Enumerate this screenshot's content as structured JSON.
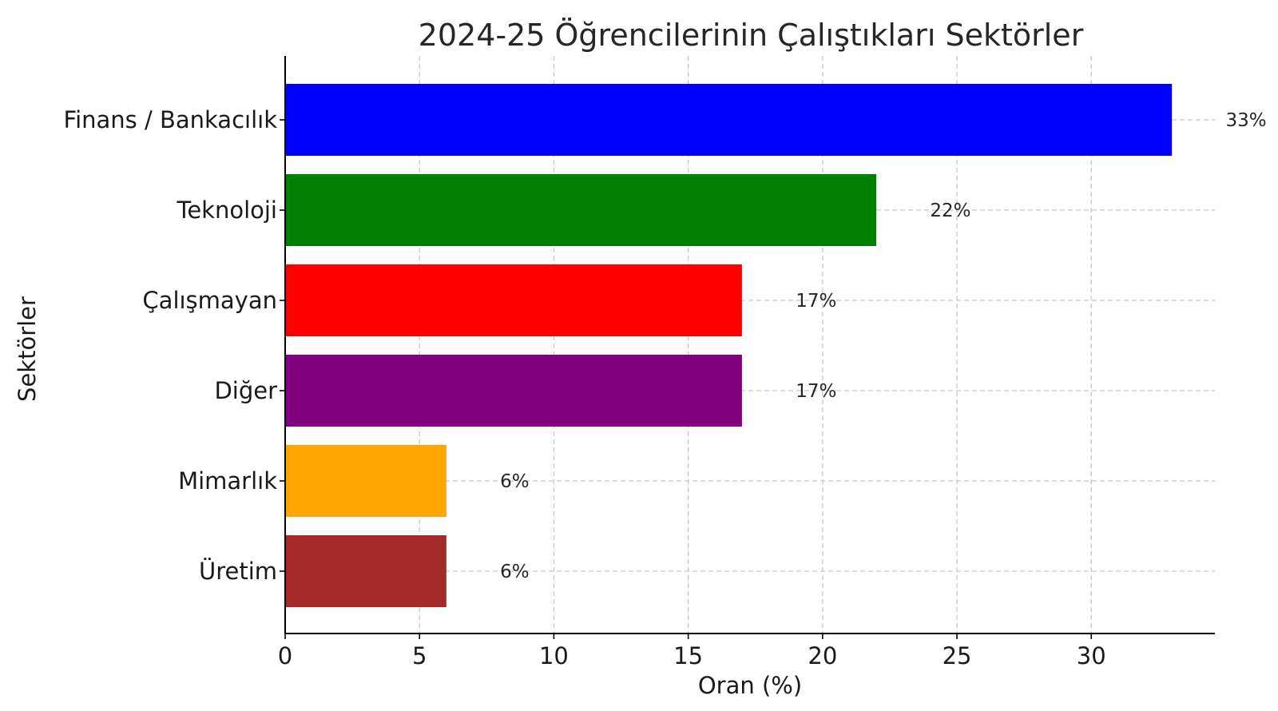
{
  "chart_data": {
    "type": "bar",
    "orientation": "horizontal",
    "title": "2024-25 Öğrencilerinin Çalıştıkları Sektörler",
    "xlabel": "Oran (%)",
    "ylabel": "Sektörler",
    "categories": [
      "Finans / Bankacılık",
      "Teknoloji",
      "Çalışmayan",
      "Diğer",
      "Mimarlık",
      "Üretim"
    ],
    "values": [
      33,
      22,
      17,
      17,
      6,
      6
    ],
    "data_labels": [
      "33%",
      "22%",
      "17%",
      "17%",
      "6%",
      "6%"
    ],
    "colors": [
      "#0000ff",
      "#008000",
      "#ff0000",
      "#800080",
      "#ffa500",
      "#a52a2a"
    ],
    "xlim": [
      0,
      34.6
    ],
    "xticks": [
      0,
      5,
      10,
      15,
      20,
      25,
      30
    ],
    "xtick_labels": [
      "0",
      "5",
      "10",
      "15",
      "20",
      "25",
      "30"
    ],
    "grid": true,
    "grid_style": "dashed",
    "legend": "none"
  }
}
